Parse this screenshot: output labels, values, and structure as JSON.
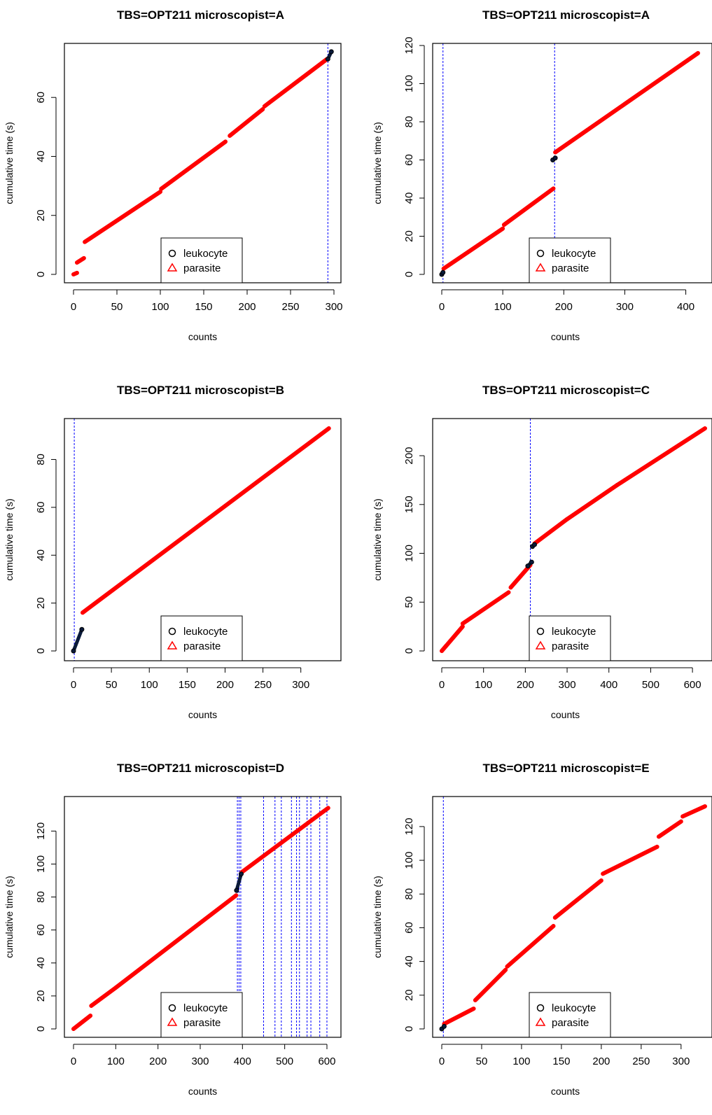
{
  "figure": {
    "background": "#ffffff"
  },
  "legend_entries": [
    {
      "label": "leukocyte",
      "symbol": "circle-open",
      "color": "#000000"
    },
    {
      "label": "parasite",
      "symbol": "triangle-open",
      "color": "#ff0000"
    }
  ],
  "colors": {
    "parasite": "#ff0000",
    "leukocyte": "#000000",
    "leukocyte_fill": "#0a1a3a",
    "vline": "#0000ff"
  },
  "chart_data": [
    {
      "type": "scatter",
      "title": "TBS=OPT211 microscopist=A",
      "xlabel": "counts",
      "ylabel": "cumulative time (s)",
      "xlim": [
        0,
        300
      ],
      "ylim": [
        0,
        75
      ],
      "xticks": [
        0,
        50,
        100,
        150,
        200,
        250,
        300
      ],
      "yticks": [
        0,
        20,
        40,
        60
      ],
      "legend_position": "bottom-center",
      "vlines": [
        293
      ],
      "parasite_segments": [
        [
          [
            0,
            0
          ],
          [
            4,
            0.5
          ]
        ],
        [
          [
            4,
            4
          ],
          [
            12,
            5.5
          ]
        ],
        [
          [
            13,
            11
          ],
          [
            100,
            28
          ]
        ],
        [
          [
            101,
            29
          ],
          [
            175,
            45
          ]
        ],
        [
          [
            180,
            47
          ],
          [
            218,
            56
          ]
        ],
        [
          [
            220,
            57
          ],
          [
            292,
            73
          ]
        ]
      ],
      "leukocyte_segments": [
        [
          [
            293,
            73
          ],
          [
            297,
            75.5
          ]
        ]
      ]
    },
    {
      "type": "scatter",
      "title": "TBS=OPT211 microscopist=A",
      "xlabel": "counts",
      "ylabel": "cumulative time (s)",
      "xlim": [
        0,
        420
      ],
      "ylim": [
        0,
        120
      ],
      "xticks": [
        0,
        100,
        200,
        300,
        400
      ],
      "yticks": [
        0,
        20,
        40,
        60,
        80,
        100,
        120
      ],
      "legend_position": "bottom-center",
      "vlines": [
        2,
        185
      ],
      "parasite_segments": [
        [
          [
            3,
            3
          ],
          [
            100,
            24
          ]
        ],
        [
          [
            102,
            26
          ],
          [
            183,
            45
          ]
        ],
        [
          [
            186,
            64
          ],
          [
            420,
            116
          ]
        ]
      ],
      "leukocyte_segments": [
        [
          [
            0,
            0
          ],
          [
            2,
            1
          ]
        ],
        [
          [
            182,
            60
          ],
          [
            186,
            61
          ]
        ]
      ]
    },
    {
      "type": "scatter",
      "title": "TBS=OPT211 microscopist=B",
      "xlabel": "counts",
      "ylabel": "cumulative time (s)",
      "xlim": [
        0,
        340
      ],
      "ylim": [
        0,
        93
      ],
      "xticks": [
        0,
        50,
        100,
        150,
        200,
        250,
        300
      ],
      "yticks": [
        0,
        20,
        40,
        60,
        80
      ],
      "legend_position": "bottom-center",
      "vlines": [
        1
      ],
      "parasite_segments": [
        [
          [
            12,
            16
          ],
          [
            337,
            93
          ]
        ]
      ],
      "leukocyte_segments": [
        [
          [
            0,
            0
          ],
          [
            11,
            9
          ]
        ]
      ]
    },
    {
      "type": "scatter",
      "title": "TBS=OPT211 microscopist=C",
      "xlabel": "counts",
      "ylabel": "cumulative time (s)",
      "xlim": [
        0,
        630
      ],
      "ylim": [
        0,
        228
      ],
      "xticks": [
        0,
        100,
        200,
        300,
        400,
        500,
        600
      ],
      "yticks": [
        0,
        50,
        100,
        150,
        200
      ],
      "legend_position": "bottom-center",
      "vlines": [
        212
      ],
      "parasite_segments": [
        [
          [
            0,
            0
          ],
          [
            50,
            25
          ]
        ],
        [
          [
            50,
            28
          ],
          [
            160,
            60
          ]
        ],
        [
          [
            165,
            65
          ],
          [
            212,
            88
          ]
        ],
        [
          [
            222,
            110
          ],
          [
            300,
            135
          ]
        ],
        [
          [
            300,
            135
          ],
          [
            420,
            170
          ]
        ],
        [
          [
            420,
            170
          ],
          [
            630,
            228
          ]
        ]
      ],
      "leukocyte_segments": [
        [
          [
            206,
            87
          ],
          [
            215,
            91
          ]
        ],
        [
          [
            217,
            107
          ],
          [
            222,
            109
          ]
        ]
      ]
    },
    {
      "type": "scatter",
      "title": "TBS=OPT211 microscopist=D",
      "xlabel": "counts",
      "ylabel": "cumulative time (s)",
      "xlim": [
        0,
        605
      ],
      "ylim": [
        0,
        135
      ],
      "xticks": [
        0,
        100,
        200,
        300,
        400,
        500,
        600
      ],
      "yticks": [
        0,
        20,
        40,
        60,
        80,
        100,
        120
      ],
      "legend_position": "bottom-center",
      "vlines": [
        388,
        392,
        396,
        450,
        477,
        492,
        516,
        528,
        535,
        553,
        562,
        583,
        600
      ],
      "parasite_segments": [
        [
          [
            0,
            0
          ],
          [
            40,
            8
          ]
        ],
        [
          [
            42,
            14
          ],
          [
            100,
            25
          ]
        ],
        [
          [
            100,
            25
          ],
          [
            385,
            81
          ]
        ],
        [
          [
            398,
            95
          ],
          [
            603,
            134
          ]
        ]
      ],
      "leukocyte_segments": [
        [
          [
            386,
            84
          ],
          [
            397,
            94
          ]
        ]
      ]
    },
    {
      "type": "scatter",
      "title": "TBS=OPT211 microscopist=E",
      "xlabel": "counts",
      "ylabel": "cumulative time (s)",
      "xlim": [
        0,
        330
      ],
      "ylim": [
        0,
        132
      ],
      "xticks": [
        0,
        50,
        100,
        150,
        200,
        250,
        300
      ],
      "yticks": [
        0,
        20,
        40,
        60,
        80,
        100,
        120
      ],
      "legend_position": "bottom-center",
      "vlines": [
        2
      ],
      "parasite_segments": [
        [
          [
            3,
            3
          ],
          [
            40,
            12
          ]
        ],
        [
          [
            42,
            17
          ],
          [
            80,
            35
          ]
        ],
        [
          [
            82,
            37
          ],
          [
            140,
            61
          ]
        ],
        [
          [
            142,
            66
          ],
          [
            200,
            88
          ]
        ],
        [
          [
            202,
            92
          ],
          [
            270,
            108
          ]
        ],
        [
          [
            272,
            114
          ],
          [
            300,
            123
          ]
        ],
        [
          [
            302,
            126
          ],
          [
            330,
            132
          ]
        ]
      ],
      "leukocyte_segments": [
        [
          [
            0,
            0
          ],
          [
            3,
            1.5
          ]
        ]
      ]
    }
  ]
}
